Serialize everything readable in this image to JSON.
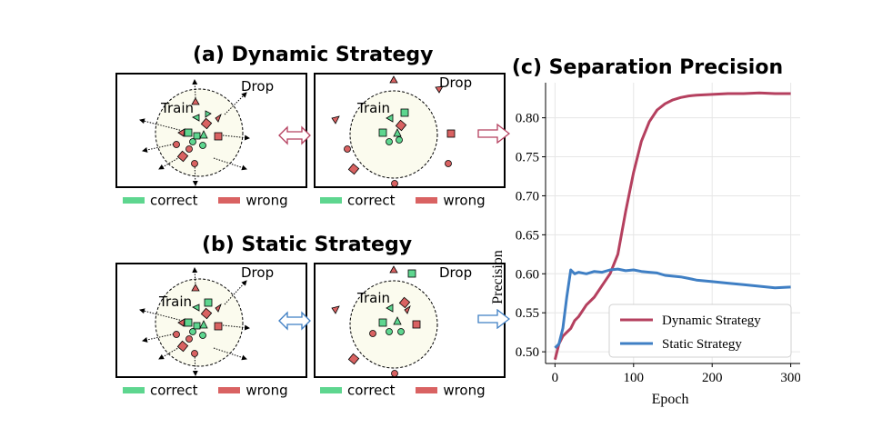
{
  "titles": {
    "dynamic": "(a) Dynamic Strategy",
    "static": "(b) Static Strategy",
    "chart": "(c) Separation Precision"
  },
  "panel_labels": {
    "train": "Train",
    "drop": "Drop"
  },
  "legend": {
    "correct": "correct",
    "wrong": "wrong"
  },
  "colors": {
    "correct": "#5ed68f",
    "wrong": "#d96262",
    "dynamic": "#b5405f",
    "static": "#3f7fc4",
    "circle_fill": "#fbfbee"
  },
  "icons": [
    "triangle",
    "square",
    "circle",
    "double-arrow",
    "right-arrow"
  ],
  "chart_data": {
    "type": "line",
    "title": "(c) Separation Precision",
    "xlabel": "Epoch",
    "ylabel": "Precision",
    "xlim": [
      -12,
      312
    ],
    "ylim": [
      0.485,
      0.845
    ],
    "xticks": [
      0,
      100,
      200,
      300
    ],
    "yticks": [
      0.5,
      0.55,
      0.6,
      0.65,
      0.7,
      0.75,
      0.8
    ],
    "grid": true,
    "legend_position": "lower-right",
    "x": [
      0,
      5,
      10,
      15,
      20,
      25,
      30,
      40,
      50,
      60,
      70,
      80,
      90,
      100,
      110,
      120,
      130,
      140,
      150,
      160,
      170,
      180,
      200,
      220,
      240,
      260,
      280,
      300
    ],
    "series": [
      {
        "name": "Dynamic Strategy",
        "values": [
          0.49,
          0.51,
          0.52,
          0.525,
          0.53,
          0.54,
          0.545,
          0.56,
          0.57,
          0.585,
          0.6,
          0.625,
          0.68,
          0.73,
          0.77,
          0.795,
          0.81,
          0.818,
          0.823,
          0.826,
          0.828,
          0.829,
          0.83,
          0.831,
          0.831,
          0.832,
          0.831,
          0.831
        ]
      },
      {
        "name": "Static Strategy",
        "values": [
          0.505,
          0.51,
          0.53,
          0.57,
          0.605,
          0.6,
          0.602,
          0.6,
          0.603,
          0.602,
          0.605,
          0.606,
          0.604,
          0.605,
          0.603,
          0.602,
          0.601,
          0.598,
          0.597,
          0.596,
          0.594,
          0.592,
          0.59,
          0.588,
          0.586,
          0.584,
          0.582,
          0.583
        ]
      }
    ]
  }
}
